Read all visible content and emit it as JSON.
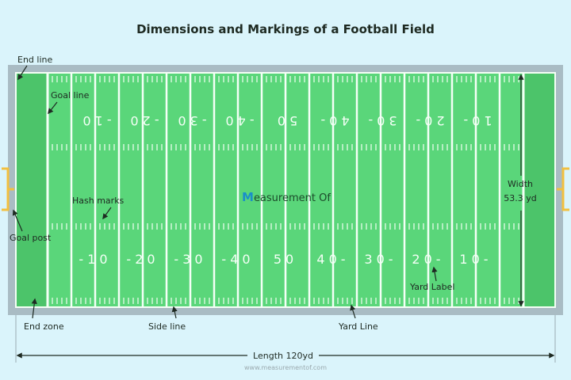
{
  "title": "Dimensions and Markings of a Football Field",
  "labels": {
    "end_line": "End line",
    "goal_line": "Goal line",
    "hash_marks": "Hash marks",
    "goal_post": "Goal post",
    "end_zone": "End zone",
    "side_line": "Side line",
    "yard_line": "Yard Line",
    "yard_label": "Yard Label",
    "width": "Width",
    "width_value": "53.3 yd",
    "length": "Length 120yd"
  },
  "watermark": {
    "initial": "M",
    "rest": "easurement Of"
  },
  "footer": "www.measurementof.com",
  "yard_numbers": [
    "-10",
    "-20",
    "-30",
    "-40",
    "50",
    "40-",
    "30-",
    "20-",
    "10-"
  ],
  "colors": {
    "background": "#daf4fb",
    "border": "#a9bcc4",
    "field": "#5ad67a",
    "end_zone": "#4cc46a",
    "goal_post": "#f2c040",
    "watermark_initial": "#1a8fc9"
  }
}
